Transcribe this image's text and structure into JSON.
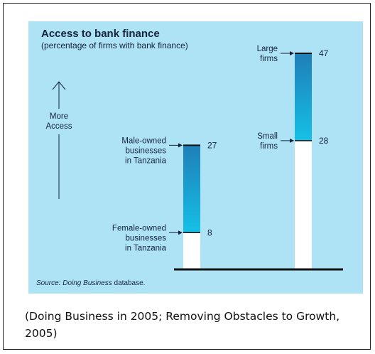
{
  "chart_data": {
    "type": "bar",
    "title": "Access to bank finance",
    "subtitle": "(percentage of firms with bank finance)",
    "axis_label": [
      "More",
      "Access"
    ],
    "source_prefix": "Source: Doing Business",
    "source_suffix": " database.",
    "ylim": [
      0,
      50
    ],
    "bars": [
      {
        "low": 8,
        "high": 27,
        "low_label": [
          "Female-owned",
          "businesses",
          "in Tanzania"
        ],
        "high_label": [
          "Male-owned",
          "businesses",
          "in Tanzania"
        ]
      },
      {
        "low": 28,
        "high": 47,
        "low_label": [
          "Small",
          "firms"
        ],
        "high_label": [
          "Large",
          "firms"
        ]
      }
    ],
    "colors": {
      "background": "#aee2f5",
      "gradient_top": "#1f7fb8",
      "gradient_bottom": "#15c0e6",
      "base": "#ffffff",
      "ink": "#14233c"
    }
  },
  "caption": "(Doing Business in 2005; Removing Obstacles to Growth, 2005)"
}
